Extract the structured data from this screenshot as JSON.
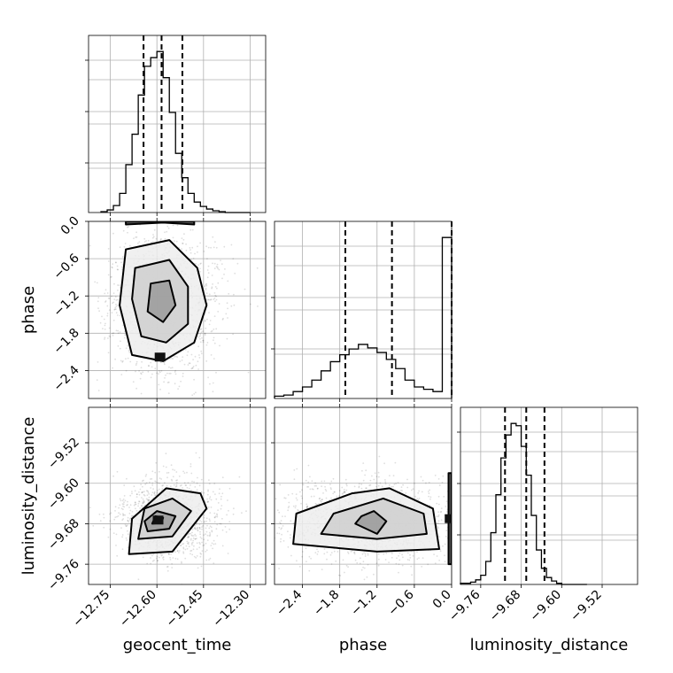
{
  "chart_data": {
    "type": "corner",
    "parameters": [
      "geocent_time",
      "phase",
      "luminosity_distance"
    ],
    "axes": {
      "geocent_time": {
        "label": "geocent_time",
        "range": [
          -12.82,
          -12.25
        ],
        "ticks": [
          -12.75,
          -12.6,
          -12.45,
          -12.3
        ],
        "tick_labels": [
          "−12.75",
          "−12.60",
          "−12.45",
          "−12.30"
        ]
      },
      "phase": {
        "label": "phase",
        "range": [
          -2.85,
          0.0
        ],
        "ticks": [
          -2.4,
          -1.8,
          -1.2,
          -0.6,
          0.0
        ],
        "tick_labels": [
          "−2.4",
          "−1.8",
          "−1.2",
          "−0.6",
          "0.0"
        ]
      },
      "luminosity_distance": {
        "label": "luminosity_distance",
        "range": [
          -9.8,
          -9.45
        ],
        "ticks": [
          -9.76,
          -9.68,
          -9.6,
          -9.52
        ],
        "tick_labels": [
          "−9.76",
          "−9.68",
          "−9.60",
          "−9.52"
        ]
      }
    },
    "histograms": {
      "geocent_time": {
        "bin_edges": [
          -12.78,
          -12.76,
          -12.74,
          -12.72,
          -12.7,
          -12.68,
          -12.66,
          -12.64,
          -12.62,
          -12.6,
          -12.58,
          -12.56,
          -12.54,
          -12.52,
          -12.5,
          -12.48,
          -12.46,
          -12.44,
          -12.42,
          -12.4,
          -12.38,
          -12.36,
          -12.34,
          -12.32,
          -12.3
        ],
        "counts": [
          1,
          3,
          8,
          22,
          55,
          90,
          135,
          168,
          178,
          185,
          155,
          115,
          68,
          40,
          22,
          12,
          7,
          4,
          2,
          1,
          0,
          0,
          0,
          0
        ],
        "quantiles": [
          -12.643,
          -12.585,
          -12.518
        ]
      },
      "phase": {
        "bin_edges": [
          -2.85,
          -2.7,
          -2.55,
          -2.4,
          -2.25,
          -2.1,
          -1.95,
          -1.8,
          -1.65,
          -1.5,
          -1.35,
          -1.2,
          -1.05,
          -0.9,
          -0.75,
          -0.6,
          -0.45,
          -0.3,
          -0.15,
          0.0
        ],
        "counts": [
          2,
          3,
          6,
          10,
          16,
          24,
          32,
          38,
          43,
          47,
          44,
          40,
          34,
          26,
          16,
          10,
          8,
          6,
          140
        ],
        "quantiles": [
          -1.71,
          -0.96,
          0.0
        ]
      },
      "luminosity_distance": {
        "bin_edges": [
          -9.8,
          -9.78,
          -9.77,
          -9.76,
          -9.75,
          -9.74,
          -9.73,
          -9.72,
          -9.71,
          -9.7,
          -9.69,
          -9.68,
          -9.67,
          -9.66,
          -9.65,
          -9.64,
          -9.63,
          -9.62,
          -9.61,
          -9.6,
          -9.59,
          -9.58,
          -9.57,
          -9.56,
          -9.55
        ],
        "counts": [
          1,
          2,
          4,
          8,
          20,
          45,
          78,
          110,
          130,
          140,
          138,
          120,
          95,
          60,
          30,
          14,
          6,
          3,
          1,
          0,
          0,
          0,
          0,
          0
        ],
        "quantiles": [
          -9.712,
          -9.67,
          -9.634
        ]
      }
    },
    "pairs": [
      {
        "x": "geocent_time",
        "y": "phase",
        "contours": [
          [
            [
              -12.7,
              -0.45
            ],
            [
              -12.56,
              -0.3
            ],
            [
              -12.47,
              -0.75
            ],
            [
              -12.44,
              -1.35
            ],
            [
              -12.48,
              -1.95
            ],
            [
              -12.58,
              -2.25
            ],
            [
              -12.68,
              -2.15
            ],
            [
              -12.72,
              -1.35
            ]
          ],
          [
            [
              -12.67,
              -0.75
            ],
            [
              -12.56,
              -0.62
            ],
            [
              -12.5,
              -1.05
            ],
            [
              -12.5,
              -1.65
            ],
            [
              -12.57,
              -1.95
            ],
            [
              -12.65,
              -1.85
            ],
            [
              -12.68,
              -1.25
            ]
          ],
          [
            [
              -12.62,
              -1.0
            ],
            [
              -12.56,
              -0.95
            ],
            [
              -12.54,
              -1.35
            ],
            [
              -12.58,
              -1.62
            ],
            [
              -12.63,
              -1.45
            ]
          ],
          [
            [
              -12.7,
              -0.05
            ],
            [
              -12.58,
              -0.02
            ],
            [
              -12.48,
              -0.05
            ],
            [
              -12.48,
              0.0
            ],
            [
              -12.7,
              0.0
            ]
          ],
          [
            [
              -12.6,
              -2.17
            ],
            [
              -12.58,
              -2.17
            ],
            [
              -12.59,
              -2.21
            ]
          ]
        ]
      },
      {
        "x": "geocent_time",
        "y": "luminosity_distance",
        "contours": [
          [
            [
              -12.69,
              -9.74
            ],
            [
              -12.55,
              -9.735
            ],
            [
              -12.44,
              -9.65
            ],
            [
              -12.46,
              -9.62
            ],
            [
              -12.57,
              -9.61
            ],
            [
              -12.68,
              -9.67
            ]
          ],
          [
            [
              -12.66,
              -9.71
            ],
            [
              -12.55,
              -9.705
            ],
            [
              -12.49,
              -9.655
            ],
            [
              -12.55,
              -9.63
            ],
            [
              -12.64,
              -9.65
            ]
          ],
          [
            [
              -12.63,
              -9.695
            ],
            [
              -12.56,
              -9.69
            ],
            [
              -12.54,
              -9.665
            ],
            [
              -12.6,
              -9.655
            ],
            [
              -12.64,
              -9.675
            ]
          ],
          [
            [
              -12.615,
              -9.68
            ],
            [
              -12.585,
              -9.678
            ],
            [
              -12.58,
              -9.668
            ],
            [
              -12.605,
              -9.665
            ]
          ]
        ]
      },
      {
        "x": "phase",
        "y": "luminosity_distance",
        "contours": [
          [
            [
              -2.55,
              -9.72
            ],
            [
              -1.2,
              -9.735
            ],
            [
              -0.2,
              -9.73
            ],
            [
              -0.3,
              -9.65
            ],
            [
              -1.0,
              -9.61
            ],
            [
              -1.6,
              -9.62
            ],
            [
              -2.5,
              -9.66
            ]
          ],
          [
            [
              -2.1,
              -9.7
            ],
            [
              -1.2,
              -9.71
            ],
            [
              -0.4,
              -9.7
            ],
            [
              -0.45,
              -9.66
            ],
            [
              -1.1,
              -9.63
            ],
            [
              -1.9,
              -9.66
            ]
          ],
          [
            [
              -1.55,
              -9.68
            ],
            [
              -1.2,
              -9.7
            ],
            [
              -1.05,
              -9.675
            ],
            [
              -1.25,
              -9.655
            ],
            [
              -1.45,
              -9.665
            ]
          ],
          [
            [
              -0.05,
              -9.76
            ],
            [
              0.0,
              -9.76
            ],
            [
              0.0,
              -9.58
            ],
            [
              -0.05,
              -9.58
            ]
          ]
        ]
      }
    ]
  }
}
